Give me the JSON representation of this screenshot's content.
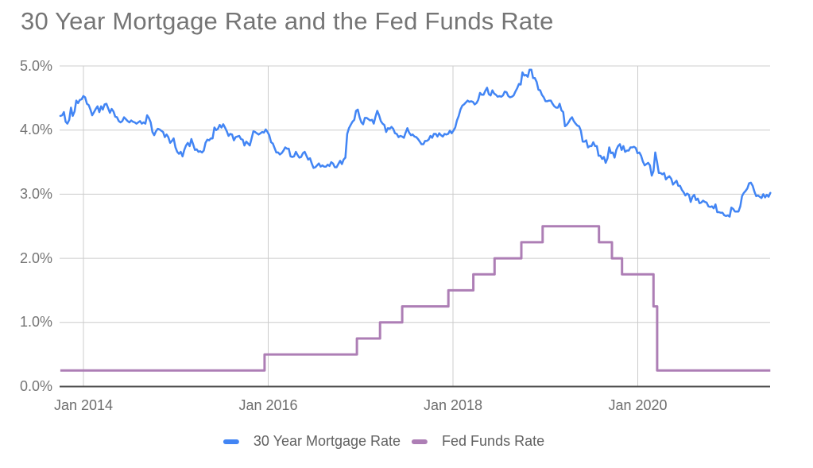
{
  "title": "30 Year Mortgage Rate and the Fed Funds Rate",
  "palette": {
    "mortgage_blue": "#4285f4",
    "fedfunds_purple": "#ad7eb5",
    "gridline": "#cccccc",
    "axis_line": "#4d4d4d",
    "title_text": "#757575",
    "tick_text": "#757575",
    "legend_text": "#616161"
  },
  "chart_data": {
    "type": "line",
    "title": "30 Year Mortgage Rate and the Fed Funds Rate",
    "xlabel": "",
    "ylabel": "",
    "grid": true,
    "legend_position": "bottom",
    "ylim": [
      0,
      5
    ],
    "xlim_decimal_years": [
      2013.75,
      2021.44
    ],
    "y_ticks": [
      "5.0%",
      "4.0%",
      "3.0%",
      "2.0%",
      "1.0%",
      "0.0%"
    ],
    "y_tick_values": [
      5,
      4,
      3,
      2,
      1,
      0
    ],
    "x_ticks": [
      "Jan 2014",
      "Jan 2016",
      "Jan 2018",
      "Jan 2020"
    ],
    "x_tick_values": [
      2014,
      2016,
      2018,
      2020
    ],
    "series": [
      {
        "name": "30 Year Mortgage Rate",
        "kind": "line",
        "color": "#4285f4",
        "unit": "%",
        "start": 2013.75,
        "step": 0.019165,
        "values": [
          4.22,
          4.23,
          4.28,
          4.13,
          4.1,
          4.16,
          4.35,
          4.22,
          4.29,
          4.46,
          4.42,
          4.47,
          4.48,
          4.53,
          4.51,
          4.41,
          4.39,
          4.32,
          4.23,
          4.28,
          4.33,
          4.37,
          4.28,
          4.37,
          4.32,
          4.4,
          4.41,
          4.34,
          4.27,
          4.33,
          4.29,
          4.21,
          4.2,
          4.14,
          4.12,
          4.14,
          4.2,
          4.17,
          4.14,
          4.12,
          4.15,
          4.13,
          4.12,
          4.1,
          4.12,
          4.14,
          4.1,
          4.12,
          4.1,
          4.23,
          4.19,
          4.12,
          3.97,
          3.92,
          3.98,
          4.02,
          4.01,
          3.99,
          3.97,
          3.89,
          3.93,
          3.89,
          3.8,
          3.83,
          3.87,
          3.73,
          3.66,
          3.63,
          3.66,
          3.59,
          3.69,
          3.76,
          3.8,
          3.75,
          3.86,
          3.78,
          3.69,
          3.7,
          3.66,
          3.67,
          3.65,
          3.68,
          3.8,
          3.85,
          3.84,
          3.87,
          3.87,
          4.04,
          4.0,
          4.02,
          4.08,
          4.04,
          4.09,
          4.04,
          3.98,
          3.91,
          3.94,
          3.93,
          3.84,
          3.89,
          3.9,
          3.91,
          3.86,
          3.85,
          3.76,
          3.82,
          3.79,
          3.76,
          3.87,
          3.98,
          3.97,
          3.95,
          3.93,
          3.95,
          3.97,
          3.96,
          4.01,
          3.97,
          3.92,
          3.81,
          3.79,
          3.72,
          3.65,
          3.65,
          3.62,
          3.64,
          3.68,
          3.73,
          3.71,
          3.71,
          3.59,
          3.58,
          3.59,
          3.66,
          3.61,
          3.57,
          3.58,
          3.64,
          3.66,
          3.6,
          3.54,
          3.56,
          3.48,
          3.41,
          3.42,
          3.45,
          3.48,
          3.43,
          3.45,
          3.43,
          3.43,
          3.46,
          3.44,
          3.5,
          3.48,
          3.42,
          3.42,
          3.47,
          3.52,
          3.47,
          3.54,
          3.57,
          3.94,
          4.03,
          4.08,
          4.13,
          4.16,
          4.3,
          4.32,
          4.2,
          4.12,
          4.09,
          4.19,
          4.19,
          4.17,
          4.15,
          4.16,
          4.1,
          4.21,
          4.3,
          4.23,
          4.14,
          4.1,
          4.08,
          3.97,
          4.03,
          4.02,
          4.05,
          4.02,
          3.95,
          3.94,
          3.89,
          3.91,
          3.9,
          3.88,
          3.96,
          4.03,
          3.96,
          3.92,
          3.93,
          3.9,
          3.89,
          3.86,
          3.82,
          3.78,
          3.78,
          3.83,
          3.83,
          3.85,
          3.91,
          3.88,
          3.94,
          3.94,
          3.9,
          3.95,
          3.92,
          3.9,
          3.94,
          3.93,
          3.94,
          3.99,
          3.95,
          3.99,
          4.04,
          4.15,
          4.22,
          4.32,
          4.38,
          4.4,
          4.43,
          4.46,
          4.44,
          4.45,
          4.44,
          4.4,
          4.42,
          4.47,
          4.58,
          4.55,
          4.55,
          4.61,
          4.66,
          4.56,
          4.54,
          4.62,
          4.57,
          4.55,
          4.52,
          4.53,
          4.52,
          4.54,
          4.6,
          4.59,
          4.53,
          4.51,
          4.52,
          4.54,
          4.6,
          4.65,
          4.72,
          4.71,
          4.9,
          4.85,
          4.86,
          4.83,
          4.94,
          4.94,
          4.81,
          4.81,
          4.75,
          4.63,
          4.62,
          4.55,
          4.51,
          4.45,
          4.45,
          4.46,
          4.46,
          4.41,
          4.37,
          4.35,
          4.35,
          4.41,
          4.31,
          4.28,
          4.06,
          4.08,
          4.12,
          4.17,
          4.2,
          4.14,
          4.1,
          4.07,
          4.06,
          3.99,
          3.82,
          3.82,
          3.84,
          3.73,
          3.75,
          3.75,
          3.81,
          3.75,
          3.75,
          3.6,
          3.6,
          3.55,
          3.58,
          3.49,
          3.56,
          3.73,
          3.64,
          3.65,
          3.57,
          3.69,
          3.75,
          3.78,
          3.69,
          3.75,
          3.66,
          3.68,
          3.68,
          3.73,
          3.73,
          3.74,
          3.72,
          3.64,
          3.65,
          3.6,
          3.51,
          3.45,
          3.47,
          3.49,
          3.45,
          3.29,
          3.36,
          3.65,
          3.5,
          3.33,
          3.33,
          3.31,
          3.33,
          3.23,
          3.26,
          3.28,
          3.24,
          3.15,
          3.18,
          3.21,
          3.13,
          3.13,
          3.07,
          3.03,
          2.98,
          3.01,
          2.99,
          2.88,
          2.96,
          2.99,
          2.91,
          2.93,
          2.86,
          2.87,
          2.9,
          2.88,
          2.87,
          2.81,
          2.8,
          2.81,
          2.78,
          2.84,
          2.72,
          2.72,
          2.71,
          2.71,
          2.67,
          2.66,
          2.67,
          2.65,
          2.79,
          2.77,
          2.73,
          2.73,
          2.73,
          2.81,
          2.97,
          3.02,
          3.05,
          3.09,
          3.17,
          3.18,
          3.13,
          3.04,
          2.97,
          2.98,
          2.96,
          2.94,
          3.0,
          2.95,
          2.99,
          2.96,
          3.02
        ]
      },
      {
        "name": "Fed Funds Rate",
        "kind": "step",
        "color": "#ad7eb5",
        "unit": "%",
        "points": [
          [
            2013.75,
            0.25
          ],
          [
            2015.96,
            0.5
          ],
          [
            2016.96,
            0.75
          ],
          [
            2017.21,
            1.0
          ],
          [
            2017.45,
            1.25
          ],
          [
            2017.95,
            1.5
          ],
          [
            2018.22,
            1.75
          ],
          [
            2018.45,
            2.0
          ],
          [
            2018.74,
            2.25
          ],
          [
            2018.97,
            2.5
          ],
          [
            2019.58,
            2.25
          ],
          [
            2019.72,
            2.0
          ],
          [
            2019.83,
            1.75
          ],
          [
            2020.17,
            1.25
          ],
          [
            2020.21,
            0.25
          ]
        ],
        "end": 2021.435
      }
    ]
  }
}
